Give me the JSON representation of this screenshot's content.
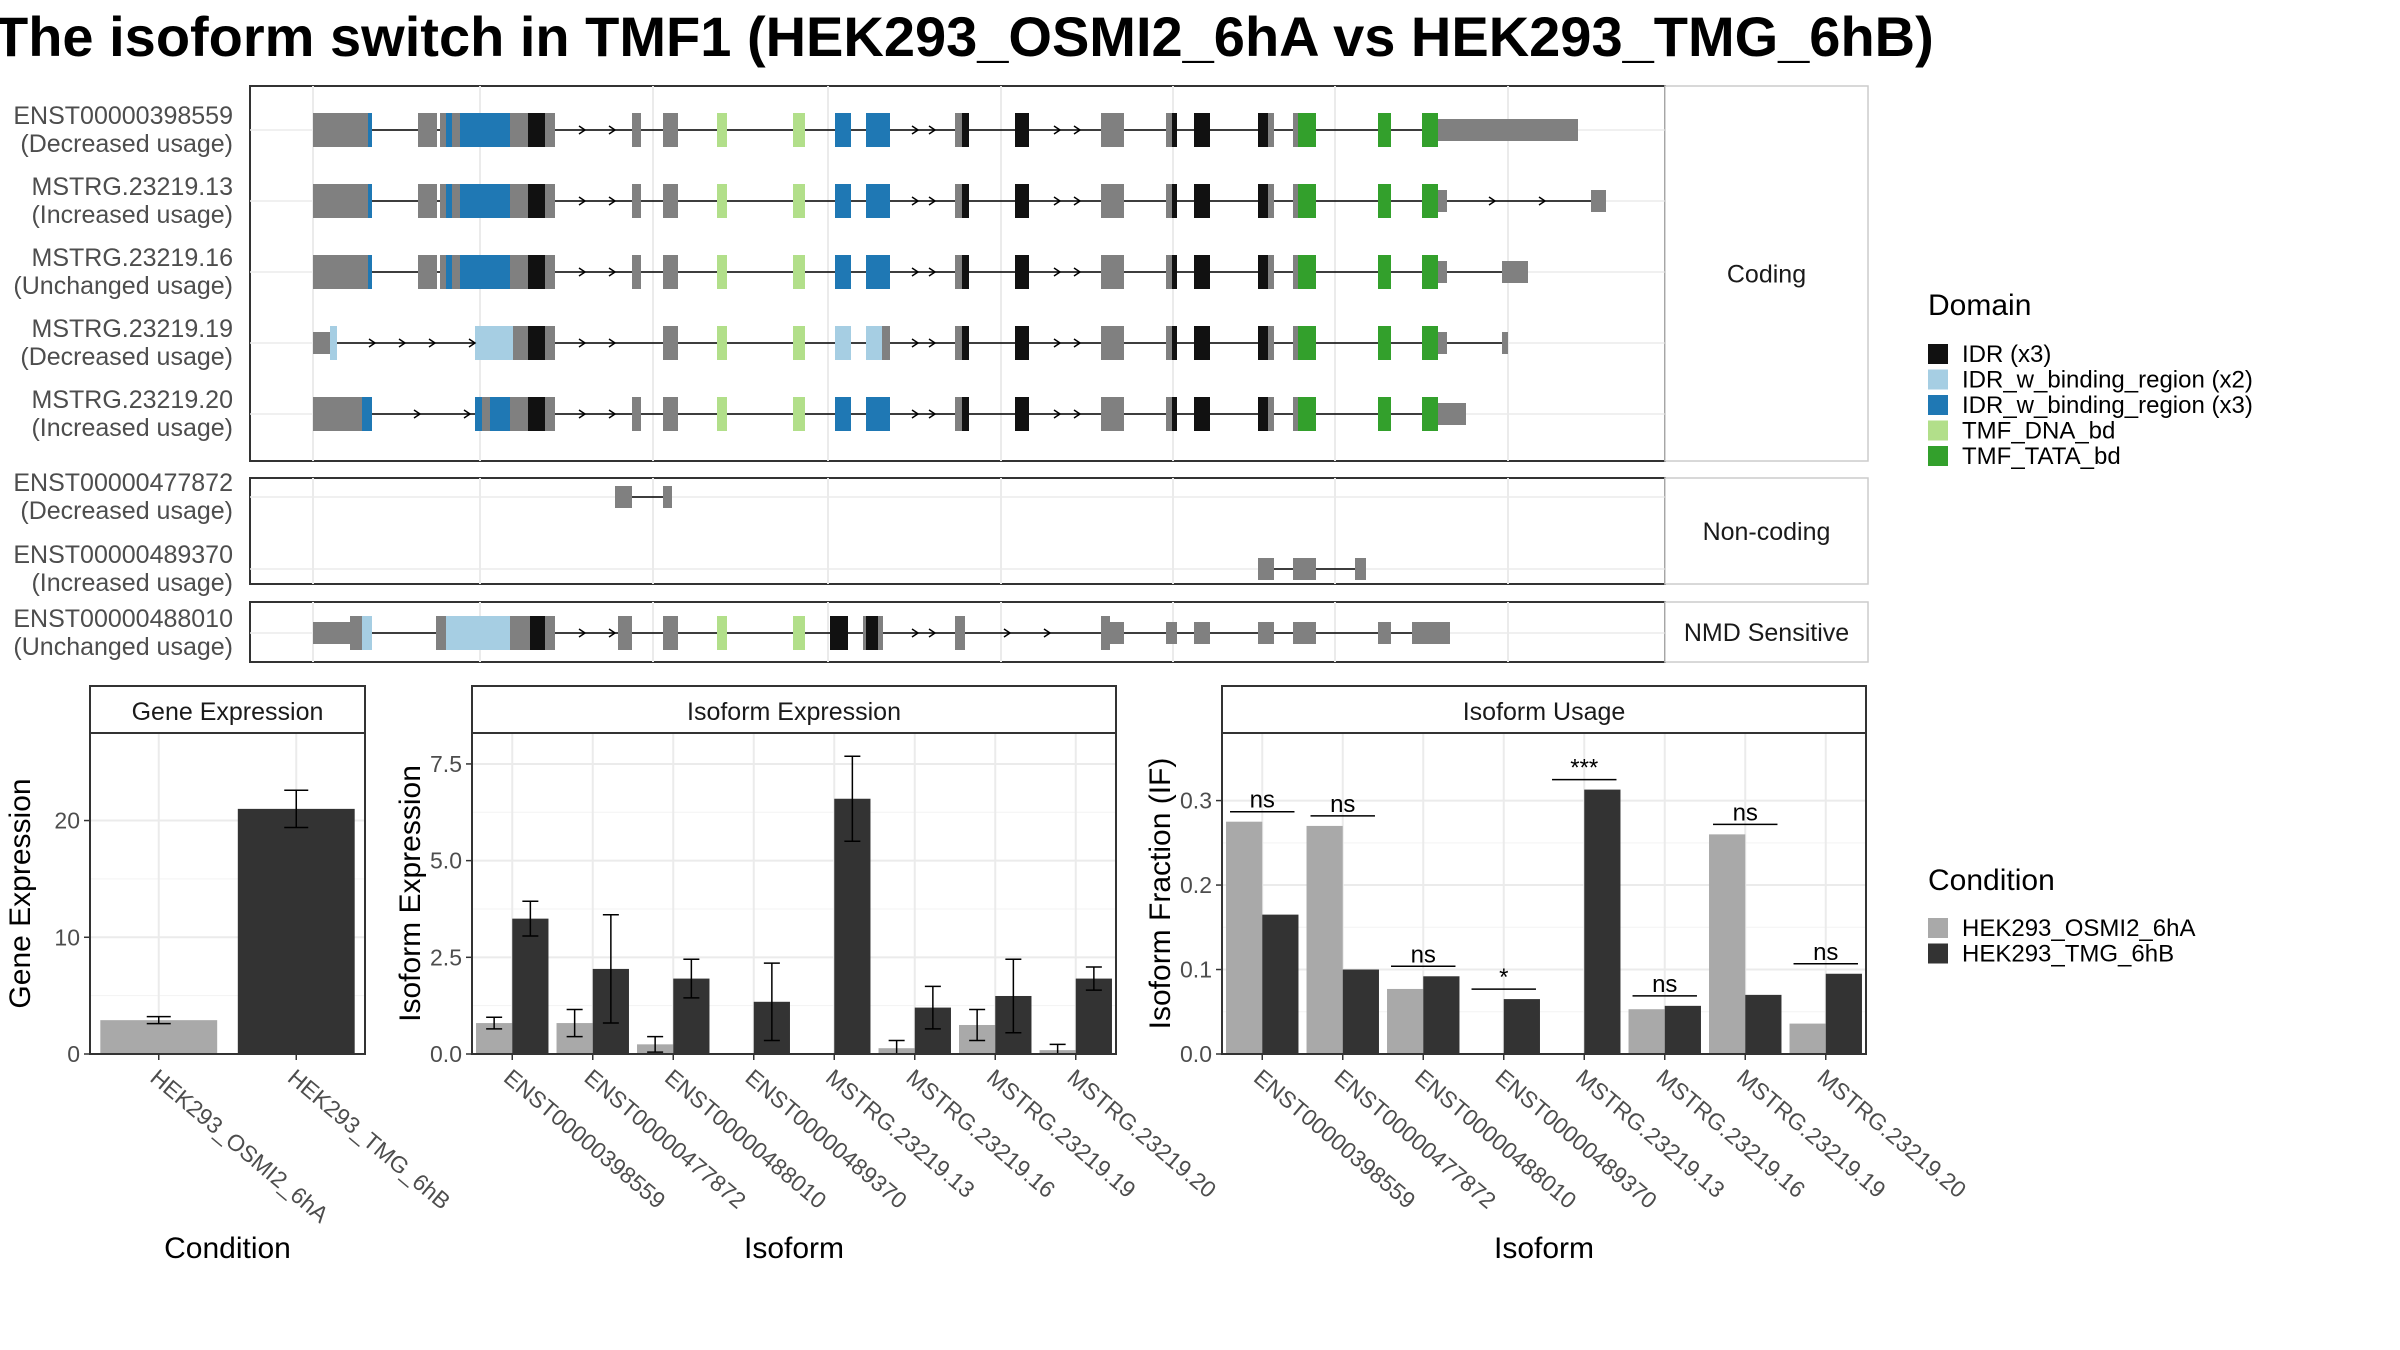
{
  "title": "The isoform switch in TMF1 (HEK293_OSMI2_6hA vs HEK293_TMG_6hB)",
  "colors": {
    "exon": "#808080",
    "axis_frame": "#333333",
    "grid": "#ebebeb",
    "cond_a": "#a9a9a9",
    "cond_b": "#333333",
    "domains": {
      "IDR (x3)": "#111111",
      "IDR_w_binding_region (x2)": "#a6cee3",
      "IDR_w_binding_region (x3)": "#1f78b4",
      "TMF_DNA_bd": "#b2df8a",
      "TMF_TATA_bd": "#33a02c"
    }
  },
  "structure": {
    "coding_label": "Coding",
    "noncoding_label": "Non-coding",
    "nmd_label": "NMD Sensitive",
    "coding": [
      {
        "id": "ENST00000398559",
        "usage": "(Decreased usage)"
      },
      {
        "id": "MSTRG.23219.13",
        "usage": "(Increased usage)"
      },
      {
        "id": "MSTRG.23219.16",
        "usage": "(Unchanged usage)"
      },
      {
        "id": "MSTRG.23219.19",
        "usage": "(Decreased usage)"
      },
      {
        "id": "MSTRG.23219.20",
        "usage": "(Increased usage)"
      }
    ],
    "noncoding": [
      {
        "id": "ENST00000477872",
        "usage": "(Decreased usage)"
      },
      {
        "id": "ENST00000489370",
        "usage": "(Increased usage)"
      }
    ],
    "nmd": [
      {
        "id": "ENST00000488010",
        "usage": "(Unchanged usage)"
      }
    ]
  },
  "legend_domain": {
    "title": "Domain",
    "items": [
      "IDR (x3)",
      "IDR_w_binding_region (x2)",
      "IDR_w_binding_region (x3)",
      "TMF_DNA_bd",
      "TMF_TATA_bd"
    ]
  },
  "legend_condition": {
    "title": "Condition",
    "items": [
      "HEK293_OSMI2_6hA",
      "HEK293_TMG_6hB"
    ]
  },
  "chart_data": [
    {
      "type": "bar",
      "title": "Gene Expression",
      "xlabel": "Condition",
      "ylabel": "Gene Expression",
      "categories": [
        "HEK293_OSMI2_6hA",
        "HEK293_TMG_6hB"
      ],
      "values": [
        2.9,
        21.0
      ],
      "errors": [
        0.3,
        1.6
      ],
      "ylim": [
        0,
        27.5
      ],
      "yticks": [
        0,
        10,
        20
      ]
    },
    {
      "type": "bar",
      "title": "Isoform Expression",
      "xlabel": "Isoform",
      "ylabel": "Isoform Expression",
      "categories": [
        "ENST00000398559",
        "ENST00000477872",
        "ENST00000488010",
        "ENST00000489370",
        "MSTRG.23219.13",
        "MSTRG.23219.16",
        "MSTRG.23219.19",
        "MSTRG.23219.20"
      ],
      "series": [
        {
          "name": "HEK293_OSMI2_6hA",
          "values": [
            0.8,
            0.8,
            0.25,
            0.0,
            0.0,
            0.15,
            0.75,
            0.1
          ],
          "errors": [
            0.15,
            0.35,
            0.2,
            0.0,
            0.0,
            0.2,
            0.4,
            0.15
          ]
        },
        {
          "name": "HEK293_TMG_6hB",
          "values": [
            3.5,
            2.2,
            1.95,
            1.35,
            6.6,
            1.2,
            1.5,
            1.95
          ],
          "errors": [
            0.45,
            1.4,
            0.5,
            1.0,
            1.1,
            0.55,
            0.95,
            0.3
          ]
        }
      ],
      "ylim": [
        0,
        8.3
      ],
      "yticks": [
        0.0,
        2.5,
        5.0,
        7.5
      ]
    },
    {
      "type": "bar",
      "title": "Isoform Usage",
      "xlabel": "Isoform",
      "ylabel": "Isoform Fraction (IF)",
      "categories": [
        "ENST00000398559",
        "ENST00000477872",
        "ENST00000488010",
        "ENST00000489370",
        "MSTRG.23219.13",
        "MSTRG.23219.16",
        "MSTRG.23219.19",
        "MSTRG.23219.20"
      ],
      "series": [
        {
          "name": "HEK293_OSMI2_6hA",
          "values": [
            0.275,
            0.27,
            0.077,
            0.0,
            0.0,
            0.053,
            0.26,
            0.036
          ]
        },
        {
          "name": "HEK293_TMG_6hB",
          "values": [
            0.165,
            0.1,
            0.092,
            0.065,
            0.313,
            0.057,
            0.07,
            0.095
          ]
        }
      ],
      "significance": [
        "ns",
        "ns",
        "ns",
        "*",
        "***",
        "ns",
        "ns",
        "ns"
      ],
      "ylim": [
        0,
        0.38
      ],
      "yticks": [
        0.0,
        0.1,
        0.2,
        0.3
      ]
    }
  ]
}
